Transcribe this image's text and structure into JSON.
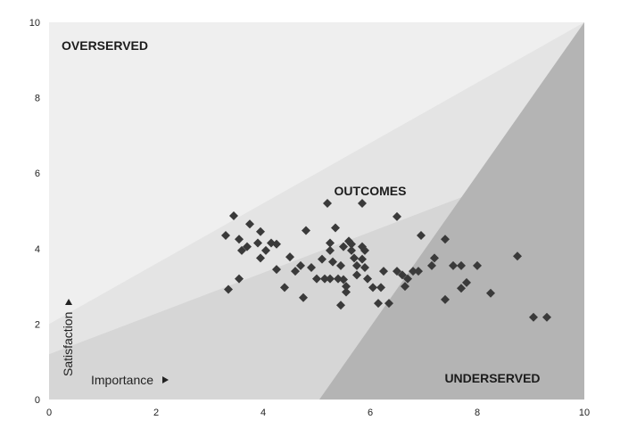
{
  "chart_data": {
    "type": "scatter",
    "title": "",
    "xlabel": "Importance",
    "ylabel": "Satisfaction",
    "xlim": [
      0,
      10
    ],
    "ylim": [
      0,
      10
    ],
    "x_ticks": [
      "0",
      "2",
      "4",
      "6",
      "8",
      "10"
    ],
    "y_ticks": [
      "0",
      "2",
      "4",
      "6",
      "8",
      "10"
    ],
    "grid": false,
    "marker": "diamond",
    "colors": {
      "marker": "#3a3a3a",
      "region_overserved": "#efefef",
      "region_band_light": "#e4e4e4",
      "region_band_mid": "#d6d6d6",
      "region_underserved": "#b4b4b4"
    },
    "region_labels": {
      "overserved": "OVERSERVED",
      "outcomes": "OUTCOMES",
      "underserved": "UNDERSERVED"
    },
    "points": [
      [
        3.35,
        2.92
      ],
      [
        3.45,
        4.87
      ],
      [
        3.3,
        4.35
      ],
      [
        3.55,
        4.25
      ],
      [
        3.6,
        3.95
      ],
      [
        3.7,
        4.05
      ],
      [
        3.55,
        3.2
      ],
      [
        3.75,
        4.65
      ],
      [
        3.9,
        4.15
      ],
      [
        3.95,
        4.45
      ],
      [
        3.95,
        3.75
      ],
      [
        4.05,
        3.95
      ],
      [
        4.15,
        4.15
      ],
      [
        4.25,
        4.12
      ],
      [
        4.25,
        3.45
      ],
      [
        4.4,
        2.97
      ],
      [
        4.5,
        3.78
      ],
      [
        4.6,
        3.4
      ],
      [
        4.7,
        3.55
      ],
      [
        4.75,
        2.7
      ],
      [
        4.8,
        4.48
      ],
      [
        4.9,
        3.5
      ],
      [
        5.0,
        3.2
      ],
      [
        5.1,
        3.72
      ],
      [
        5.15,
        3.2
      ],
      [
        5.2,
        5.2
      ],
      [
        5.25,
        3.2
      ],
      [
        5.25,
        3.95
      ],
      [
        5.25,
        4.15
      ],
      [
        5.3,
        3.65
      ],
      [
        5.35,
        4.55
      ],
      [
        5.4,
        3.2
      ],
      [
        5.45,
        2.5
      ],
      [
        5.45,
        3.55
      ],
      [
        5.5,
        3.18
      ],
      [
        5.5,
        4.05
      ],
      [
        5.55,
        3.0
      ],
      [
        5.55,
        2.85
      ],
      [
        5.6,
        4.2
      ],
      [
        5.65,
        4.12
      ],
      [
        5.65,
        3.95
      ],
      [
        5.7,
        3.75
      ],
      [
        5.75,
        3.55
      ],
      [
        5.75,
        3.3
      ],
      [
        5.85,
        5.2
      ],
      [
        5.85,
        4.05
      ],
      [
        5.85,
        3.72
      ],
      [
        5.9,
        3.95
      ],
      [
        5.9,
        3.5
      ],
      [
        5.95,
        3.2
      ],
      [
        6.05,
        2.97
      ],
      [
        6.15,
        2.55
      ],
      [
        6.2,
        2.97
      ],
      [
        6.25,
        3.4
      ],
      [
        6.35,
        2.55
      ],
      [
        6.5,
        4.85
      ],
      [
        6.5,
        3.4
      ],
      [
        6.6,
        3.3
      ],
      [
        6.65,
        3.0
      ],
      [
        6.7,
        3.2
      ],
      [
        6.8,
        3.4
      ],
      [
        6.9,
        3.4
      ],
      [
        6.95,
        4.35
      ],
      [
        7.15,
        3.55
      ],
      [
        7.2,
        3.75
      ],
      [
        7.4,
        4.25
      ],
      [
        7.4,
        2.65
      ],
      [
        7.55,
        3.55
      ],
      [
        7.7,
        3.55
      ],
      [
        7.7,
        2.95
      ],
      [
        7.8,
        3.1
      ],
      [
        8.0,
        3.55
      ],
      [
        8.25,
        2.82
      ],
      [
        8.75,
        3.8
      ],
      [
        9.05,
        2.18
      ],
      [
        9.3,
        2.18
      ]
    ]
  }
}
